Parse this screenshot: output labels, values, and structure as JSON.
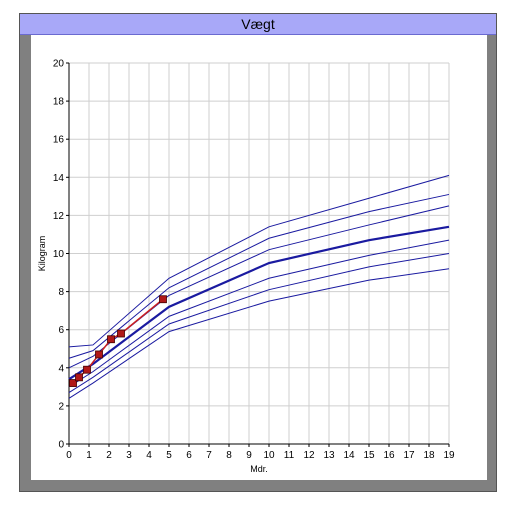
{
  "chart_data": {
    "type": "line",
    "title": "Vægt",
    "xlabel": "Mdr.",
    "ylabel": "Kilogram",
    "xlim": [
      0,
      19
    ],
    "ylim": [
      0,
      20
    ],
    "x_ticks": [
      0,
      1,
      2,
      3,
      4,
      5,
      6,
      7,
      8,
      9,
      10,
      11,
      12,
      13,
      14,
      15,
      16,
      17,
      18,
      19
    ],
    "y_ticks": [
      0,
      2,
      4,
      6,
      8,
      10,
      12,
      14,
      16,
      18,
      20
    ],
    "grid": true,
    "colors": {
      "reference": "#1a1aa0",
      "median": "#1a1aa0",
      "child": "#cc2020",
      "marker_fill": "#b01818"
    },
    "reference_curves": [
      {
        "x": [
          0,
          1.2,
          5,
          10,
          15,
          19
        ],
        "y": [
          5.1,
          5.2,
          8.7,
          11.4,
          12.9,
          14.1
        ]
      },
      {
        "x": [
          0,
          1.2,
          5,
          10,
          15,
          19
        ],
        "y": [
          4.5,
          4.9,
          8.2,
          10.8,
          12.2,
          13.1
        ]
      },
      {
        "x": [
          0,
          1.2,
          5,
          10,
          15,
          19
        ],
        "y": [
          4.0,
          4.6,
          7.8,
          10.2,
          11.5,
          12.5
        ]
      },
      {
        "x": [
          0,
          1.2,
          5,
          10,
          15,
          19
        ],
        "y": [
          3.4,
          4.2,
          7.2,
          9.5,
          10.7,
          11.4
        ],
        "median": true
      },
      {
        "x": [
          0,
          1.2,
          5,
          10,
          15,
          19
        ],
        "y": [
          3.0,
          3.8,
          6.7,
          8.7,
          9.9,
          10.7
        ]
      },
      {
        "x": [
          0,
          1.2,
          5,
          10,
          15,
          19
        ],
        "y": [
          2.7,
          3.5,
          6.3,
          8.1,
          9.3,
          10.0
        ]
      },
      {
        "x": [
          0,
          1.2,
          5,
          10,
          15,
          19
        ],
        "y": [
          2.4,
          3.2,
          5.9,
          7.5,
          8.6,
          9.2
        ]
      }
    ],
    "child_measurements": {
      "x": [
        0.2,
        0.5,
        0.9,
        1.5,
        2.1,
        2.6,
        4.7
      ],
      "y": [
        3.2,
        3.5,
        3.9,
        4.7,
        5.5,
        5.8,
        7.6
      ]
    }
  }
}
